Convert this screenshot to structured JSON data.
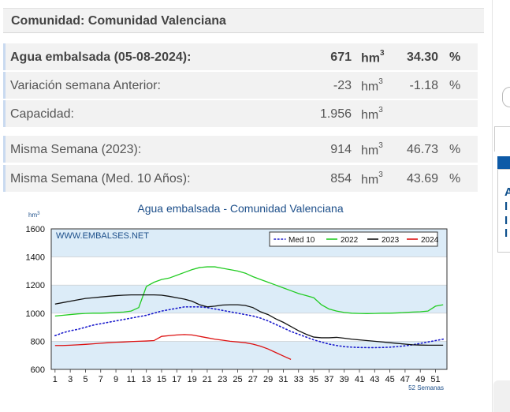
{
  "header": {
    "title": "Comunidad: Comunidad Valenciana"
  },
  "rows": [
    {
      "label": "Agua embalsada (05-08-2024):",
      "value": "671",
      "unit": "hm",
      "unit_sup": "3",
      "pct": "34.30",
      "pct_sign": "%",
      "bold": true
    },
    {
      "label": "Variación semana Anterior:",
      "value": "-23",
      "unit": "hm",
      "unit_sup": "3",
      "pct": "-1.18",
      "pct_sign": "%"
    },
    {
      "label": "Capacidad:",
      "value": "1.956",
      "unit": "hm",
      "unit_sup": "3",
      "pct": "",
      "pct_sign": ""
    },
    {
      "label": "Misma Semana (2023):",
      "value": "914",
      "unit": "hm",
      "unit_sup": "3",
      "pct": "46.73",
      "pct_sign": "%"
    },
    {
      "label": "Misma Semana (Med. 10 Años):",
      "value": "854",
      "unit": "hm",
      "unit_sup": "3",
      "pct": "43.69",
      "pct_sign": "%"
    }
  ],
  "sidebar": {
    "letters": [
      "A",
      "I",
      "I",
      "I"
    ],
    "colors": {
      "accent": "#0d5aa7"
    }
  },
  "chart_data": {
    "type": "line",
    "title": "Agua embalsada - Comunidad Valenciana",
    "ylabel": "hm",
    "ylabel_sup": "3",
    "xlabel": "52 Semanas",
    "watermark": "WWW.EMBALSES.NET",
    "ylim": [
      600,
      1600
    ],
    "yticks": [
      600,
      800,
      1000,
      1200,
      1400,
      1600
    ],
    "xlim": [
      1,
      52
    ],
    "xticks": [
      1,
      3,
      5,
      7,
      9,
      11,
      13,
      15,
      17,
      19,
      21,
      23,
      25,
      27,
      29,
      31,
      33,
      35,
      37,
      39,
      41,
      43,
      45,
      47,
      49,
      51
    ],
    "bands": [
      {
        "from": 1000,
        "to": 1200,
        "color": "#dcecf8"
      },
      {
        "from": 1400,
        "to": 1600,
        "color": "#dcecf8"
      },
      {
        "from": 600,
        "to": 800,
        "color": "#dcecf8"
      }
    ],
    "legend_position": "top-right",
    "series": [
      {
        "name": "Med 10",
        "color": "#1a1acc",
        "style": "dotted",
        "x": [
          1,
          2,
          3,
          4,
          5,
          6,
          7,
          8,
          9,
          10,
          11,
          12,
          13,
          14,
          15,
          16,
          17,
          18,
          19,
          20,
          21,
          22,
          23,
          24,
          25,
          26,
          27,
          28,
          29,
          30,
          31,
          32,
          33,
          34,
          35,
          36,
          37,
          38,
          39,
          40,
          41,
          42,
          43,
          44,
          45,
          46,
          47,
          48,
          49,
          50,
          51,
          52
        ],
        "values": [
          840,
          860,
          875,
          885,
          900,
          915,
          925,
          935,
          945,
          955,
          965,
          975,
          985,
          1000,
          1015,
          1025,
          1035,
          1045,
          1045,
          1045,
          1040,
          1030,
          1020,
          1010,
          1000,
          990,
          980,
          965,
          945,
          920,
          895,
          870,
          850,
          830,
          810,
          795,
          780,
          770,
          762,
          758,
          756,
          755,
          755,
          756,
          758,
          762,
          768,
          775,
          785,
          795,
          805,
          815
        ]
      },
      {
        "name": "2022",
        "color": "#22cc22",
        "style": "solid",
        "x": [
          1,
          2,
          3,
          4,
          5,
          6,
          7,
          8,
          9,
          10,
          11,
          12,
          13,
          14,
          15,
          16,
          17,
          18,
          19,
          20,
          21,
          22,
          23,
          24,
          25,
          26,
          27,
          28,
          29,
          30,
          31,
          32,
          33,
          34,
          35,
          36,
          37,
          38,
          39,
          40,
          41,
          42,
          43,
          44,
          45,
          46,
          47,
          48,
          49,
          50,
          51,
          52
        ],
        "values": [
          980,
          985,
          990,
          995,
          998,
          1000,
          1000,
          1002,
          1005,
          1008,
          1015,
          1040,
          1190,
          1220,
          1240,
          1250,
          1270,
          1290,
          1310,
          1325,
          1330,
          1330,
          1320,
          1310,
          1300,
          1285,
          1260,
          1240,
          1220,
          1200,
          1180,
          1160,
          1140,
          1125,
          1110,
          1060,
          1030,
          1015,
          1005,
          1000,
          998,
          997,
          998,
          1000,
          1000,
          1002,
          1005,
          1008,
          1010,
          1015,
          1050,
          1060
        ]
      },
      {
        "name": "2023",
        "color": "#111111",
        "style": "solid",
        "x": [
          1,
          2,
          3,
          4,
          5,
          6,
          7,
          8,
          9,
          10,
          11,
          12,
          13,
          14,
          15,
          16,
          17,
          18,
          19,
          20,
          21,
          22,
          23,
          24,
          25,
          26,
          27,
          28,
          29,
          30,
          31,
          32,
          33,
          34,
          35,
          36,
          37,
          38,
          39,
          40,
          41,
          42,
          43,
          44,
          45,
          46,
          47,
          48,
          49,
          50,
          51,
          52
        ],
        "values": [
          1065,
          1075,
          1085,
          1095,
          1105,
          1110,
          1115,
          1120,
          1125,
          1128,
          1130,
          1130,
          1130,
          1130,
          1128,
          1120,
          1110,
          1100,
          1085,
          1060,
          1045,
          1050,
          1058,
          1060,
          1060,
          1055,
          1040,
          1010,
          990,
          960,
          935,
          905,
          875,
          850,
          830,
          825,
          825,
          828,
          822,
          815,
          810,
          805,
          800,
          795,
          790,
          785,
          780,
          775,
          773,
          772,
          772,
          772
        ]
      },
      {
        "name": "2024",
        "color": "#dd1111",
        "style": "solid",
        "x": [
          1,
          2,
          3,
          4,
          5,
          6,
          7,
          8,
          9,
          10,
          11,
          12,
          13,
          14,
          15,
          16,
          17,
          18,
          19,
          20,
          21,
          22,
          23,
          24,
          25,
          26,
          27,
          28,
          29,
          30,
          31,
          32
        ],
        "values": [
          770,
          770,
          772,
          775,
          778,
          782,
          786,
          790,
          793,
          795,
          798,
          800,
          802,
          805,
          835,
          840,
          845,
          848,
          845,
          835,
          825,
          815,
          808,
          800,
          795,
          790,
          780,
          765,
          745,
          720,
          695,
          671
        ]
      }
    ]
  }
}
